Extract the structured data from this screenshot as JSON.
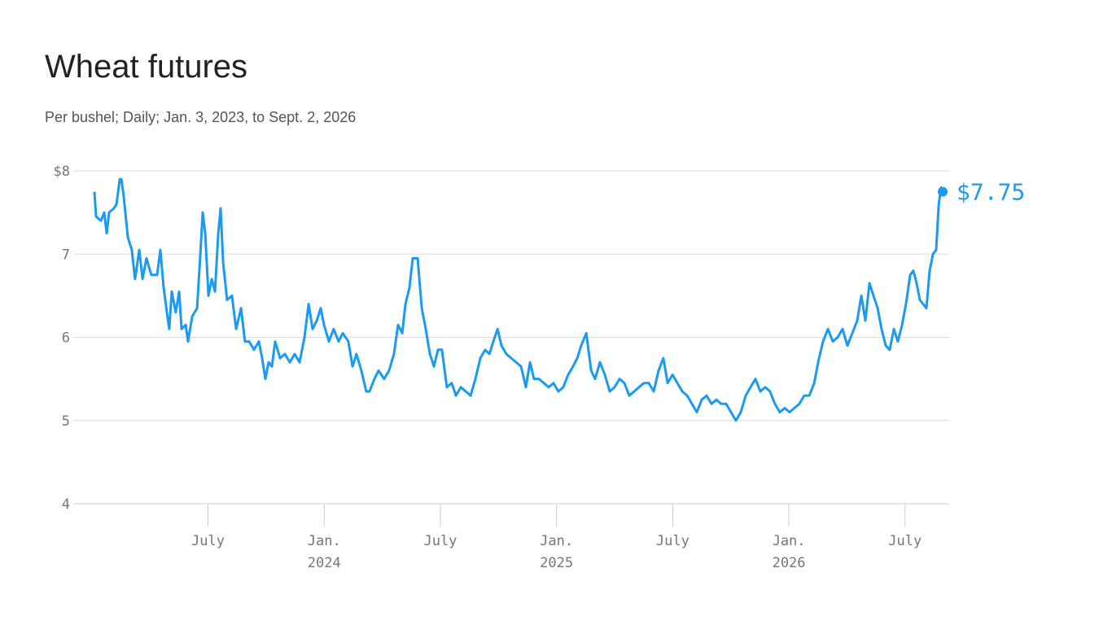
{
  "chart_data": {
    "type": "line",
    "title": "Wheat futures",
    "subtitle": "Per bushel; Daily; Jan. 3, 2023, to Sept. 2, 2026",
    "xlim": [
      2022.92,
      2026.69
    ],
    "ylim": [
      4,
      8
    ],
    "yticks": [
      4,
      5,
      6,
      7,
      {
        "value": 8,
        "label": "$8"
      }
    ],
    "xticks": [
      {
        "value": 2023.5,
        "label": "July"
      },
      {
        "value": 2024,
        "label": "Jan.",
        "year": "2024"
      },
      {
        "value": 2024.5,
        "label": "July"
      },
      {
        "value": 2025,
        "label": "Jan.",
        "year": "2025"
      },
      {
        "value": 2025.5,
        "label": "July"
      },
      {
        "value": 2026,
        "label": "Jan.",
        "year": "2026"
      },
      {
        "value": 2026.5,
        "label": "July"
      }
    ],
    "grid": true,
    "x": [
      2023.011,
      2023.018,
      2023.039,
      2023.053,
      2023.064,
      2023.074,
      2023.095,
      2023.106,
      2023.12,
      2023.127,
      2023.137,
      2023.155,
      2023.172,
      2023.186,
      2023.204,
      2023.218,
      2023.235,
      2023.256,
      2023.281,
      2023.295,
      2023.309,
      2023.323,
      2023.333,
      2023.344,
      2023.361,
      2023.376,
      2023.386,
      2023.404,
      2023.414,
      2023.432,
      2023.453,
      2023.467,
      2023.477,
      2023.488,
      2023.502,
      2023.516,
      2023.53,
      2023.544,
      2023.554,
      2023.565,
      2023.582,
      2023.603,
      2023.621,
      2023.642,
      2023.659,
      2023.677,
      2023.698,
      2023.719,
      2023.733,
      2023.747,
      2023.761,
      2023.775,
      2023.789,
      2023.81,
      2023.831,
      2023.852,
      2023.873,
      2023.894,
      2023.915,
      2023.933,
      2023.95,
      2023.968,
      2023.985,
      2023.999,
      2024.02,
      2024.041,
      2024.062,
      2024.08,
      2024.104,
      2024.122,
      2024.139,
      2024.16,
      2024.181,
      2024.195,
      2024.216,
      2024.234,
      2024.258,
      2024.279,
      2024.3,
      2024.318,
      2024.336,
      2024.35,
      2024.367,
      2024.381,
      2024.402,
      2024.42,
      2024.437,
      2024.455,
      2024.472,
      2024.49,
      2024.507,
      2024.528,
      2024.549,
      2024.567,
      2024.588,
      2024.609,
      2024.63,
      2024.651,
      2024.672,
      2024.693,
      2024.711,
      2024.728,
      2024.746,
      2024.763,
      2024.784,
      2024.805,
      2024.826,
      2024.847,
      2024.868,
      2024.886,
      2024.903,
      2024.924,
      2024.945,
      2024.966,
      2024.987,
      2025.008,
      2025.029,
      2025.05,
      2025.071,
      2025.089,
      2025.106,
      2025.128,
      2025.149,
      2025.166,
      2025.187,
      2025.208,
      2025.229,
      2025.25,
      2025.271,
      2025.292,
      2025.313,
      2025.334,
      2025.355,
      2025.376,
      2025.397,
      2025.418,
      2025.439,
      2025.46,
      2025.478,
      2025.499,
      2025.52,
      2025.541,
      2025.562,
      2025.583,
      2025.604,
      2025.625,
      2025.646,
      2025.667,
      2025.688,
      2025.709,
      2025.73,
      2025.751,
      2025.772,
      2025.793,
      2025.814,
      2025.835,
      2025.856,
      2025.877,
      2025.898,
      2025.919,
      2025.94,
      2025.961,
      2025.982,
      2026.003,
      2026.024,
      2026.045,
      2026.066,
      2026.088,
      2026.109,
      2026.126,
      2026.147,
      2026.168,
      2026.189,
      2026.21,
      2026.231,
      2026.252,
      2026.273,
      2026.294,
      2026.312,
      2026.329,
      2026.347,
      2026.364,
      2026.382,
      2026.399,
      2026.417,
      2026.434,
      2026.452,
      2026.469,
      2026.487,
      2026.504,
      2026.522,
      2026.536,
      2026.55,
      2026.564,
      2026.578,
      2026.592,
      2026.606,
      2026.62,
      2026.634,
      2026.645,
      2026.655,
      2026.662
    ],
    "series": [
      {
        "name": "Wheat futures",
        "color": "#1a9bf0",
        "values": [
          7.75,
          7.45,
          7.4,
          7.5,
          7.25,
          7.5,
          7.55,
          7.6,
          7.9,
          7.9,
          7.7,
          7.2,
          7.05,
          6.7,
          7.05,
          6.7,
          6.95,
          6.75,
          6.75,
          7.05,
          6.6,
          6.3,
          6.1,
          6.55,
          6.3,
          6.55,
          6.1,
          6.15,
          5.95,
          6.25,
          6.35,
          7.0,
          7.5,
          7.25,
          6.5,
          6.7,
          6.55,
          7.25,
          7.55,
          6.9,
          6.45,
          6.5,
          6.1,
          6.35,
          5.95,
          5.95,
          5.85,
          5.95,
          5.75,
          5.5,
          5.7,
          5.65,
          5.95,
          5.75,
          5.8,
          5.7,
          5.8,
          5.7,
          6.0,
          6.4,
          6.1,
          6.2,
          6.35,
          6.15,
          5.95,
          6.1,
          5.95,
          6.05,
          5.95,
          5.65,
          5.8,
          5.6,
          5.35,
          5.35,
          5.5,
          5.6,
          5.5,
          5.6,
          5.8,
          6.15,
          6.05,
          6.4,
          6.6,
          6.95,
          6.95,
          6.35,
          6.1,
          5.8,
          5.65,
          5.85,
          5.85,
          5.4,
          5.45,
          5.3,
          5.4,
          5.35,
          5.3,
          5.5,
          5.75,
          5.85,
          5.8,
          5.95,
          6.1,
          5.9,
          5.8,
          5.75,
          5.7,
          5.65,
          5.4,
          5.7,
          5.5,
          5.5,
          5.45,
          5.4,
          5.45,
          5.35,
          5.4,
          5.55,
          5.65,
          5.75,
          5.9,
          6.05,
          5.6,
          5.5,
          5.7,
          5.55,
          5.35,
          5.4,
          5.5,
          5.45,
          5.3,
          5.35,
          5.4,
          5.45,
          5.45,
          5.35,
          5.6,
          5.75,
          5.45,
          5.55,
          5.45,
          5.35,
          5.3,
          5.2,
          5.1,
          5.25,
          5.3,
          5.2,
          5.25,
          5.2,
          5.2,
          5.1,
          5.0,
          5.1,
          5.3,
          5.4,
          5.5,
          5.35,
          5.4,
          5.35,
          5.2,
          5.1,
          5.15,
          5.1,
          5.15,
          5.2,
          5.3,
          5.3,
          5.45,
          5.7,
          5.95,
          6.1,
          5.95,
          6.0,
          6.1,
          5.9,
          6.05,
          6.2,
          6.5,
          6.2,
          6.65,
          6.5,
          6.35,
          6.1,
          5.9,
          5.85,
          6.1,
          5.95,
          6.15,
          6.4,
          6.75,
          6.8,
          6.65,
          6.45,
          6.4,
          6.35,
          6.8,
          7.0,
          7.05,
          7.6,
          7.8,
          7.75
        ]
      }
    ],
    "annotation": {
      "x": 2026.662,
      "value": 7.75,
      "label": "$7.75"
    }
  }
}
